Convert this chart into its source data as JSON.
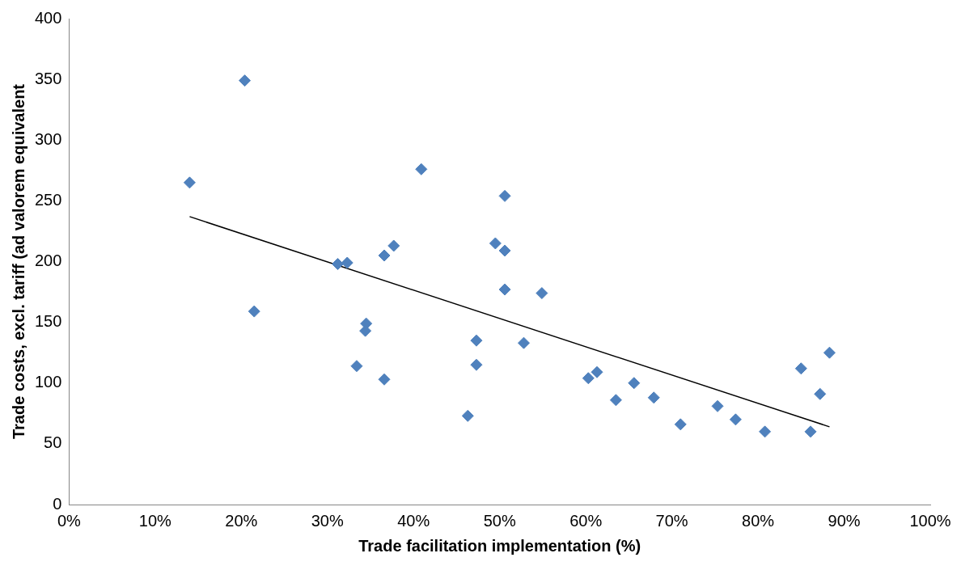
{
  "chart_data": {
    "type": "scatter",
    "xlabel": "Trade facilitation implementation (%)",
    "ylabel": "Trade costs, excl. tariff (ad valorem equivalent",
    "xlim": [
      0,
      100
    ],
    "xticks": [
      {
        "value": 0,
        "label": "0%"
      },
      {
        "value": 10,
        "label": "10%"
      },
      {
        "value": 20,
        "label": "20%"
      },
      {
        "value": 30,
        "label": "30%"
      },
      {
        "value": 40,
        "label": "40%"
      },
      {
        "value": 50,
        "label": "50%"
      },
      {
        "value": 60,
        "label": "60%"
      },
      {
        "value": 70,
        "label": "70%"
      },
      {
        "value": 80,
        "label": "80%"
      },
      {
        "value": 90,
        "label": "90%"
      },
      {
        "value": 100,
        "label": "100%"
      }
    ],
    "ylim": [
      0,
      400
    ],
    "yticks": [
      0,
      50,
      100,
      150,
      200,
      250,
      300,
      350,
      400
    ],
    "grid": false,
    "legend": false,
    "marker": "diamond",
    "series": [
      {
        "color": "#4f81bd",
        "x": [
          14.0,
          20.4,
          21.5,
          31.2,
          32.3,
          33.4,
          34.5,
          34.4,
          36.6,
          36.6,
          37.7,
          40.9,
          46.3,
          47.3,
          47.3,
          49.5,
          50.6,
          50.6,
          50.6,
          52.8,
          54.9,
          60.3,
          61.3,
          63.5,
          65.6,
          67.9,
          71.0,
          75.3,
          77.4,
          80.8,
          85.0,
          86.1,
          87.2,
          88.3
        ],
        "values": [
          265,
          349,
          159,
          198,
          199,
          114,
          149,
          143,
          205,
          103,
          213,
          276,
          73,
          135,
          115,
          215,
          254,
          209,
          177,
          133,
          174,
          104,
          109,
          86,
          100,
          88,
          66,
          81,
          70,
          60,
          112,
          60,
          91,
          125
        ]
      },
      {
        "type": "line",
        "color": "#000000",
        "marker": "none",
        "x": [
          14.0,
          88.3
        ],
        "values": [
          237,
          64
        ]
      }
    ]
  }
}
